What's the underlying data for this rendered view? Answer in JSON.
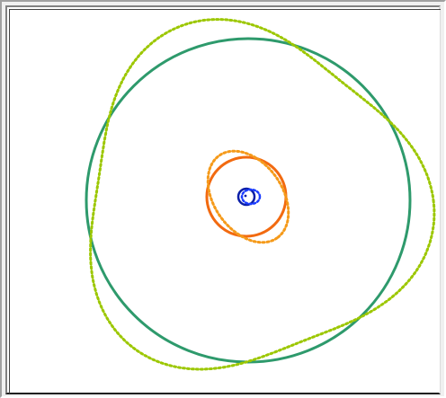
{
  "orbit_plot": {
    "colors": {
      "outer_solid": "#2e9a6c",
      "outer_dotted": "#9cc700",
      "middle_solid": "#f26a10",
      "middle_dotted": "#f59a1a",
      "inner_solid": "#0a1ea8",
      "inner_dotted": "#1a3cff",
      "background": "#ffffff",
      "frame": "#f0f0f0"
    },
    "curves": [
      {
        "name": "outer-circle",
        "style": "solid",
        "color_key": "outer_solid"
      },
      {
        "name": "outer-trefoil",
        "style": "dotted",
        "color_key": "outer_dotted"
      },
      {
        "name": "middle-circle",
        "style": "solid",
        "color_key": "middle_solid"
      },
      {
        "name": "middle-ellipse",
        "style": "dotted",
        "color_key": "middle_dotted"
      },
      {
        "name": "inner-circle",
        "style": "solid",
        "color_key": "inner_solid"
      },
      {
        "name": "inner-ellipse",
        "style": "dotted",
        "color_key": "inner_dotted"
      }
    ]
  }
}
